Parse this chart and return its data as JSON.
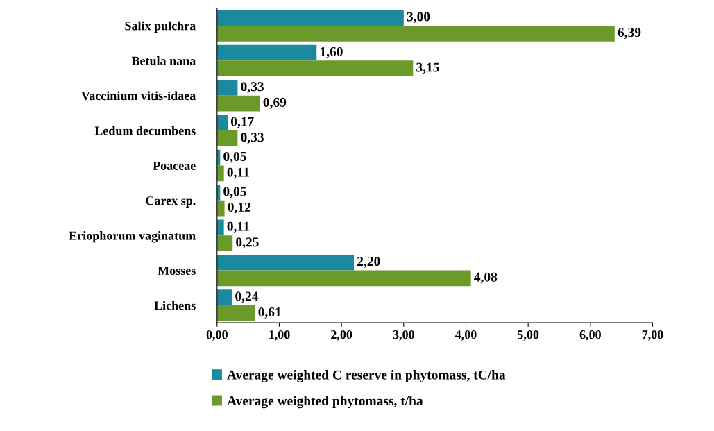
{
  "chart_data": {
    "type": "bar",
    "orientation": "horizontal",
    "categories": [
      "Salix pulchra",
      "Betula nana",
      "Vaccinium vitis-idaea",
      "Ledum decumbens",
      "Poaceae",
      "Carex sp.",
      "Eriophorum vaginatum",
      "Mosses",
      "Lichens"
    ],
    "series": [
      {
        "name": "Average weighted C reserve in phytomass, tC/ha",
        "color": "#1b8a9e",
        "values": [
          3.0,
          1.6,
          0.33,
          0.17,
          0.05,
          0.05,
          0.11,
          2.2,
          0.24
        ],
        "value_labels": [
          "3,00",
          "1,60",
          "0,33",
          "0,17",
          "0,05",
          "0,05",
          "0,11",
          "2,20",
          "0,24"
        ]
      },
      {
        "name": "Average weighted phytomass, t/ha",
        "color": "#6b9a2b",
        "values": [
          6.39,
          3.15,
          0.69,
          0.33,
          0.11,
          0.12,
          0.25,
          4.08,
          0.61
        ],
        "value_labels": [
          "6,39",
          "3,15",
          "0,69",
          "0,33",
          "0,11",
          "0,12",
          "0,25",
          "4,08",
          "0,61"
        ]
      }
    ],
    "xlim": [
      0,
      7
    ],
    "xticks": [
      {
        "value": 0,
        "label": "0,00"
      },
      {
        "value": 1,
        "label": "1,00"
      },
      {
        "value": 2,
        "label": "2,00"
      },
      {
        "value": 3,
        "label": "3,00"
      },
      {
        "value": 4,
        "label": "4,00"
      },
      {
        "value": 5,
        "label": "5,00"
      },
      {
        "value": 6,
        "label": "6,00"
      },
      {
        "value": 7,
        "label": "7,00"
      }
    ],
    "grid": false,
    "legend": "bottom"
  }
}
